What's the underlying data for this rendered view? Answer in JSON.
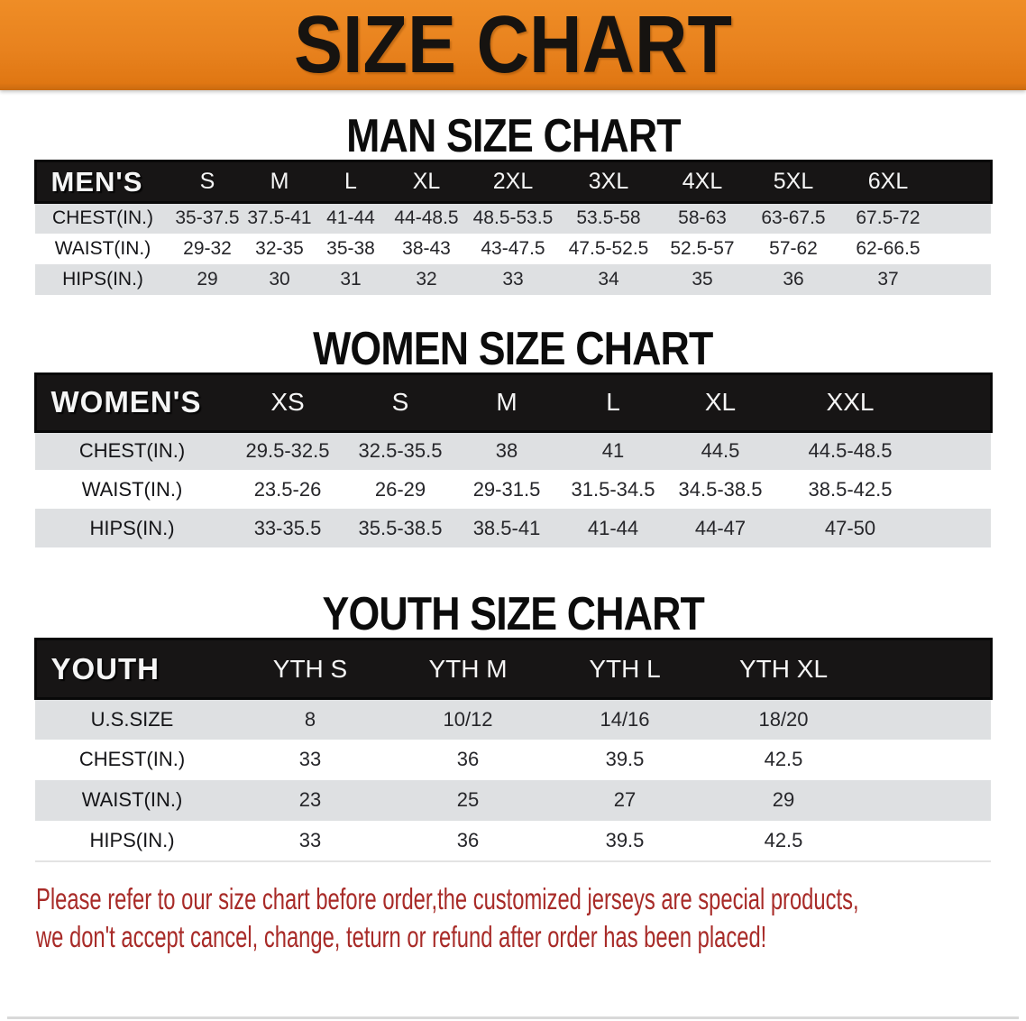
{
  "banner": {
    "title": "SIZE CHART",
    "bg_color": "#e8821e",
    "text_color": "#161310"
  },
  "sections": [
    {
      "heading": "MAN SIZE CHART",
      "table": {
        "label_header": "MEN'S",
        "size_headers": [
          "S",
          "M",
          "L",
          "XL",
          "2XL",
          "3XL",
          "4XL",
          "5XL",
          "6XL"
        ],
        "rows": [
          {
            "label": "CHEST(IN.)",
            "values": [
              "35-37.5",
              "37.5-41",
              "41-44",
              "44-48.5",
              "48.5-53.5",
              "53.5-58",
              "58-63",
              "63-67.5",
              "67.5-72"
            ]
          },
          {
            "label": "WAIST(IN.)",
            "values": [
              "29-32",
              "32-35",
              "35-38",
              "38-43",
              "43-47.5",
              "47.5-52.5",
              "52.5-57",
              "57-62",
              "62-66.5"
            ]
          },
          {
            "label": "HIPS(IN.)",
            "values": [
              "29",
              "30",
              "31",
              "32",
              "33",
              "34",
              "35",
              "36",
              "37"
            ]
          }
        ]
      }
    },
    {
      "heading": "WOMEN SIZE CHART",
      "table": {
        "label_header": "WOMEN'S",
        "size_headers": [
          "XS",
          "S",
          "M",
          "L",
          "XL",
          "XXL"
        ],
        "rows": [
          {
            "label": "CHEST(IN.)",
            "values": [
              "29.5-32.5",
              "32.5-35.5",
              "38",
              "41",
              "44.5",
              "44.5-48.5"
            ]
          },
          {
            "label": "WAIST(IN.)",
            "values": [
              "23.5-26",
              "26-29",
              "29-31.5",
              "31.5-34.5",
              "34.5-38.5",
              "38.5-42.5"
            ]
          },
          {
            "label": "HIPS(IN.)",
            "values": [
              "33-35.5",
              "35.5-38.5",
              "38.5-41",
              "41-44",
              "44-47",
              "47-50"
            ]
          }
        ]
      }
    },
    {
      "heading": "YOUTH SIZE CHART",
      "table": {
        "label_header": "YOUTH",
        "size_headers": [
          "YTH S",
          "YTH M",
          "YTH L",
          "YTH XL"
        ],
        "rows": [
          {
            "label": "U.S.SIZE",
            "values": [
              "8",
              "10/12",
              "14/16",
              "18/20"
            ]
          },
          {
            "label": "CHEST(IN.)",
            "values": [
              "33",
              "36",
              "39.5",
              "42.5"
            ]
          },
          {
            "label": "WAIST(IN.)",
            "values": [
              "23",
              "25",
              "27",
              "29"
            ]
          },
          {
            "label": "HIPS(IN.)",
            "values": [
              "33",
              "36",
              "39.5",
              "42.5"
            ]
          }
        ]
      }
    }
  ],
  "footer": {
    "lines": [
      "Please refer to our size chart before order,the customized jerseys are special products,",
      "we don't accept cancel, change, teturn or refund after order has been placed!"
    ],
    "text_color": "#a82b28"
  },
  "colors": {
    "header_bar": "#171515",
    "row_stripe": "#dee0e2"
  }
}
